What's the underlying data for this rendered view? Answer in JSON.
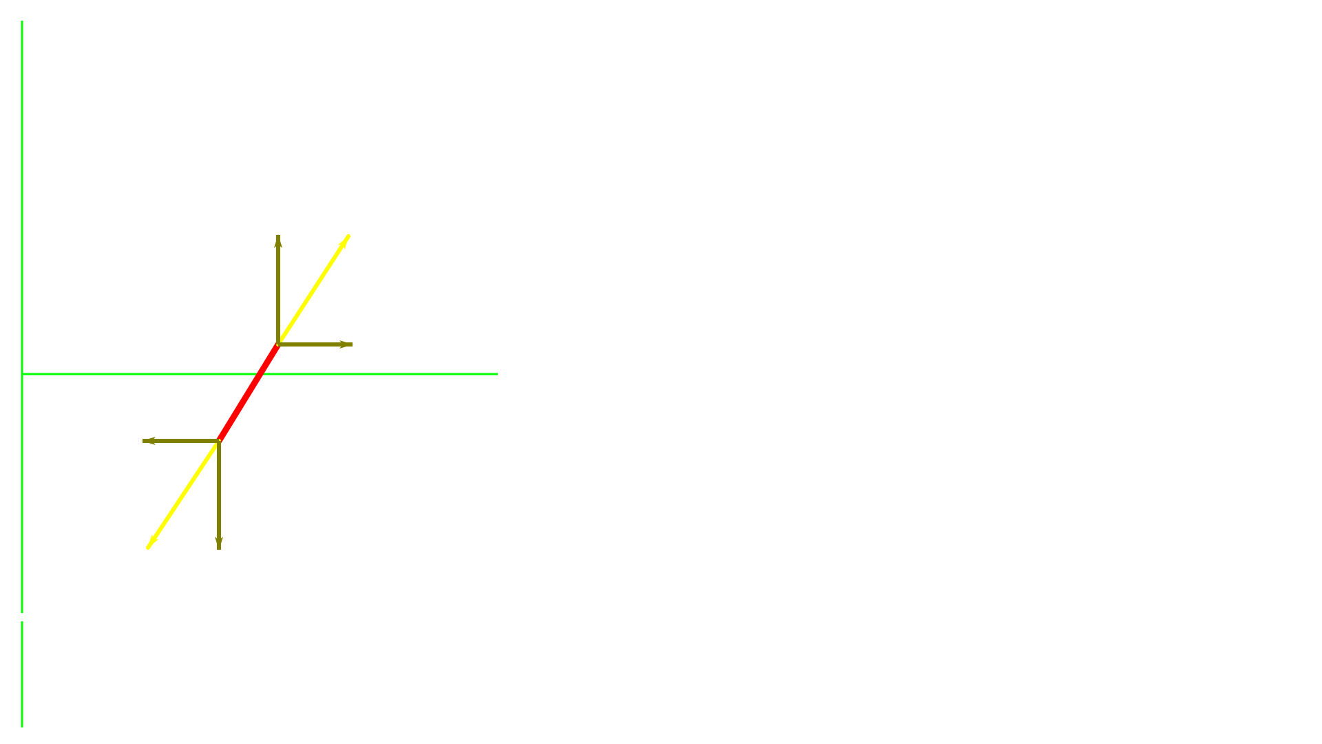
{
  "diagram": {
    "colors": {
      "background": "#ffffff",
      "axes": "#00ff00",
      "segment": "#ff0000",
      "direction_vectors": "#ffff00",
      "component_vectors": "#808000"
    },
    "elements": [
      "vertical-axis-line",
      "vertical-axis-lower-line",
      "horizontal-axis-line",
      "red-segment",
      "yellow-direction-arrow-up",
      "yellow-direction-arrow-down",
      "olive-component-arrow-up",
      "olive-component-arrow-right",
      "olive-component-arrow-left",
      "olive-component-arrow-down"
    ]
  }
}
